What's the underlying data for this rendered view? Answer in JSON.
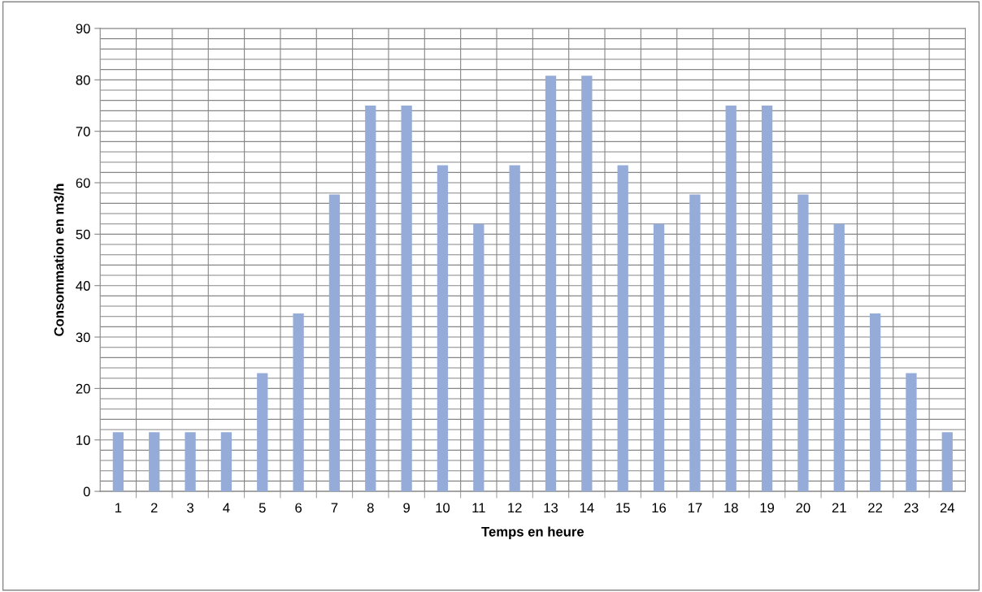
{
  "chart_data": {
    "type": "bar",
    "xlabel": "Temps en heure",
    "ylabel": "Consommation en m3/h",
    "categories": [
      "1",
      "2",
      "3",
      "4",
      "5",
      "6",
      "7",
      "8",
      "9",
      "10",
      "11",
      "12",
      "13",
      "14",
      "15",
      "16",
      "17",
      "18",
      "19",
      "20",
      "21",
      "22",
      "23",
      "24"
    ],
    "values": [
      11.5,
      11.5,
      11.5,
      11.5,
      23,
      34.6,
      57.7,
      75,
      75,
      63.4,
      52,
      63.4,
      80.8,
      80.8,
      63.4,
      52,
      57.7,
      75,
      75,
      57.7,
      52,
      34.6,
      23,
      11.5
    ],
    "color": "#95acd8",
    "ylim": [
      0,
      90
    ],
    "yticks": [
      0,
      10,
      20,
      30,
      40,
      50,
      60,
      70,
      80,
      90
    ],
    "grid": true
  }
}
